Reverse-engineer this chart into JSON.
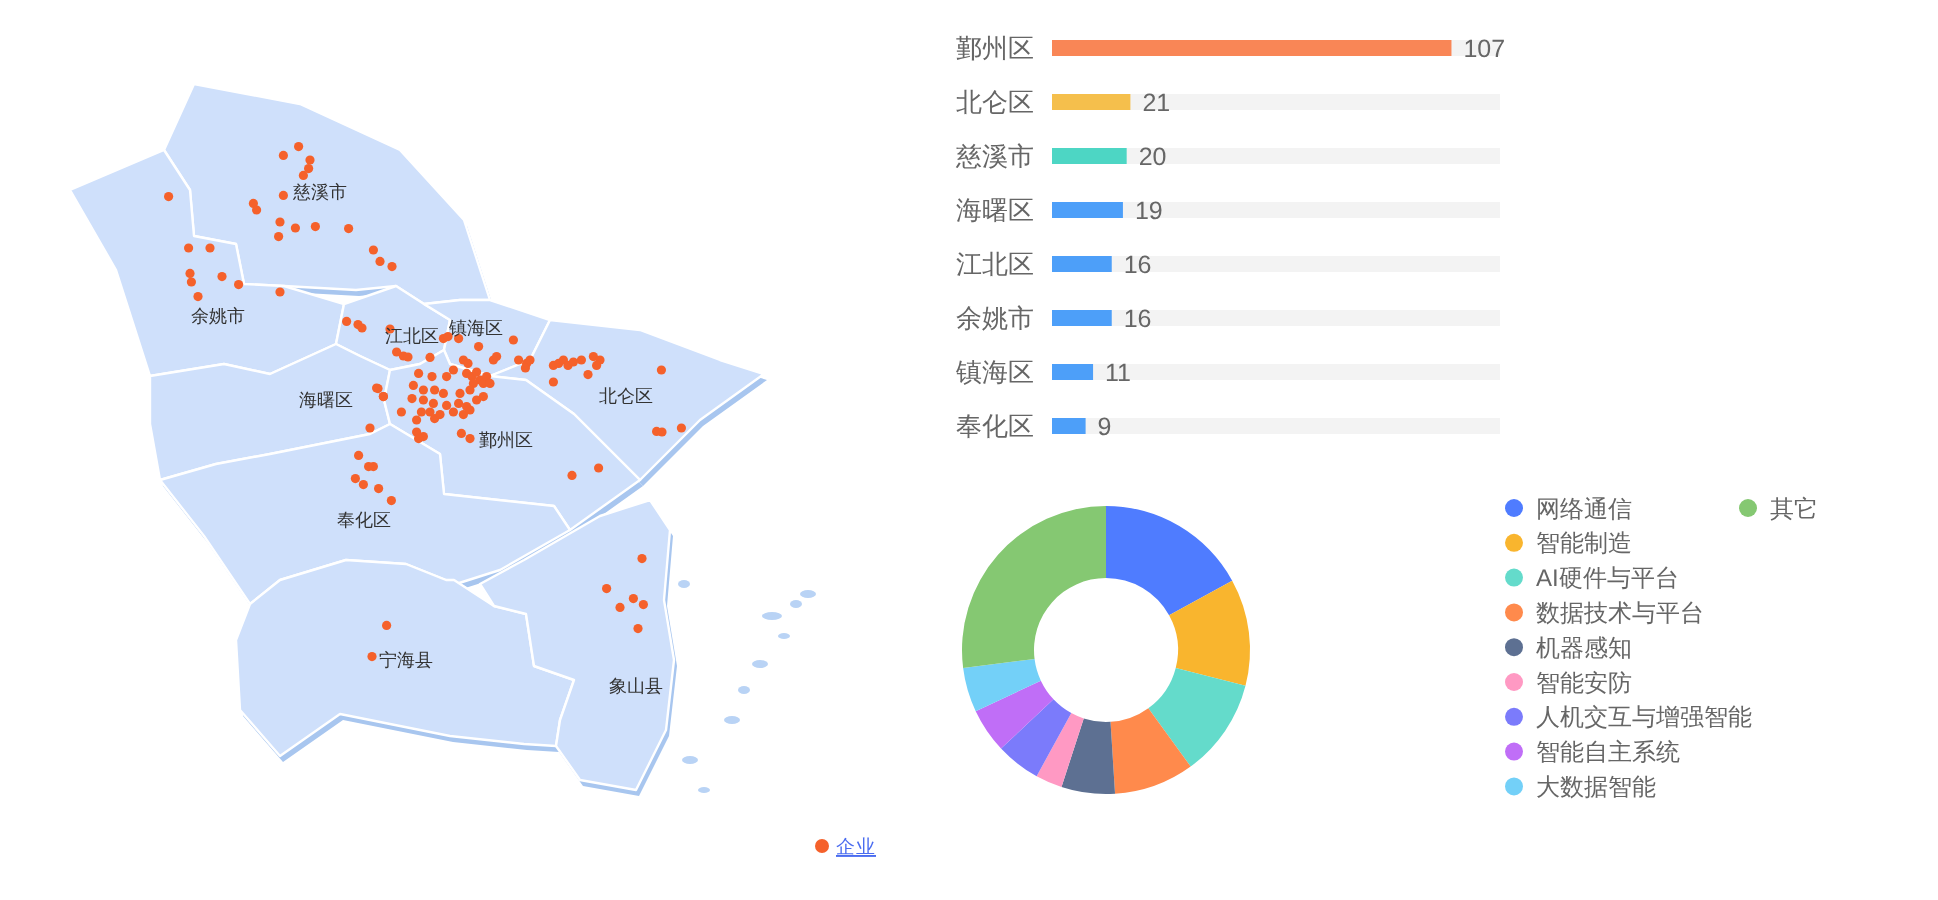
{
  "chart_data": [
    {
      "type": "other",
      "annotations": [
        "慈溪市",
        "余姚市",
        "江北区",
        "镇海区",
        "海曙区",
        "鄞州区",
        "北仑区",
        "奉化区",
        "宁海县",
        "象山县"
      ],
      "series": [
        {
          "name": "企业",
          "color": "#f5612b"
        }
      ],
      "legend": "bottom right"
    },
    {
      "type": "bar",
      "orientation": "horizontal",
      "categories": [
        "鄞州区",
        "北仑区",
        "慈溪市",
        "海曙区",
        "江北区",
        "余姚市",
        "镇海区",
        "奉化区"
      ],
      "values": [
        107,
        21,
        20,
        19,
        16,
        16,
        11,
        9
      ],
      "colors": [
        "#f98656",
        "#f5bf4c",
        "#4dd6c4",
        "#4d9ff9",
        "#4d9ff9",
        "#4d9ff9",
        "#4d9ff9",
        "#4d9ff9"
      ],
      "xlim": [
        0,
        120
      ],
      "data_labels": true,
      "tick_labels": "y"
    },
    {
      "type": "donut",
      "categories": [
        "网络通信",
        "智能制造",
        "AI硬件与平台",
        "数据技术与平台",
        "机器感知",
        "智能安防",
        "人机交互与增强智能",
        "智能自主系统",
        "大数据智能",
        "其它"
      ],
      "values": [
        17,
        12,
        11,
        9,
        6,
        3,
        5,
        5,
        5,
        27
      ],
      "colors": [
        "#4f7cff",
        "#f9b52e",
        "#64dbcb",
        "#ff8a4c",
        "#5d7092",
        "#ff99c3",
        "#7b7bfb",
        "#c06ef7",
        "#73d0f8",
        "#85c872"
      ],
      "legend": "right"
    }
  ]
}
